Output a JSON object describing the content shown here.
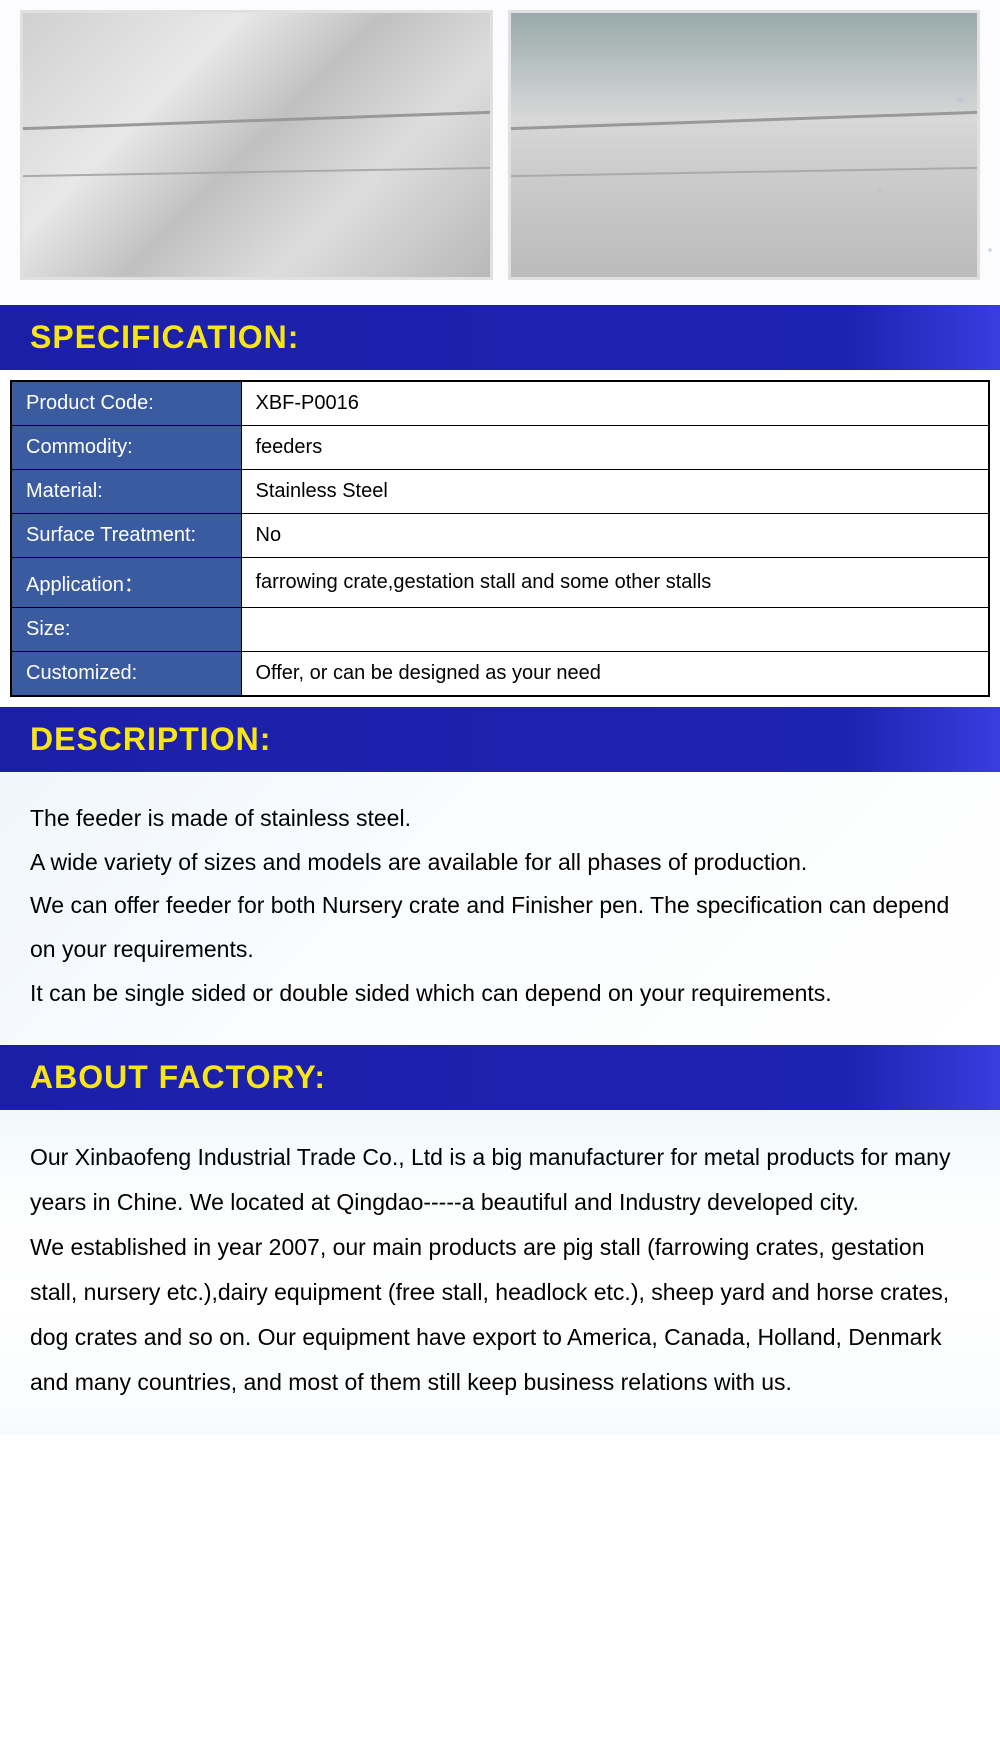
{
  "headers": {
    "specification": "SPECIFICATION:",
    "description": "DESCRIPTION:",
    "about": "ABOUT FACTORY:"
  },
  "colors": {
    "header_bg": "#1b1fa8",
    "header_text": "#f7e516",
    "spec_label_bg": "#3a5ba0",
    "spec_label_text": "#ffffff",
    "spec_value_bg": "#ffffff",
    "border": "#000000",
    "body_text": "#000000"
  },
  "typography": {
    "header_fontsize": 32,
    "table_fontsize": 20,
    "body_fontsize": 23
  },
  "spec_table": {
    "rows": [
      {
        "label": "Product Code:",
        "value": "XBF-P0016"
      },
      {
        "label": "Commodity:",
        "value": "feeders"
      },
      {
        "label": "Material:",
        "value": "Stainless Steel"
      },
      {
        "label": "Surface Treatment:",
        "value": "No"
      },
      {
        "label": "Application：",
        "value": "farrowing crate,gestation stall and some other stalls"
      },
      {
        "label": "Size:",
        "value": ""
      },
      {
        "label": "Customized:",
        "value": "Offer, or can be designed as your need"
      }
    ]
  },
  "description": {
    "p1": "The feeder is made of stainless steel.",
    "p2": "A wide variety of sizes and models are available for all phases of production.",
    "p3": "We can offer feeder for both Nursery crate and Finisher pen. The specification can depend on your requirements.",
    "p4": "It can be single sided or double sided which can depend on your requirements."
  },
  "about": {
    "p1": "Our Xinbaofeng Industrial Trade Co., Ltd is a big manufacturer for metal products for many years in Chine. We located at Qingdao-----a beautiful and Industry developed city.",
    "p2": "We established in year 2007, our main products are pig stall (farrowing crates, gestation stall, nursery etc.),dairy equipment (free stall, headlock etc.), sheep yard and horse crates, dog crates and so on. Our equipment have export to America, Canada, Holland, Denmark and many countries, and most of them still keep business relations with us."
  }
}
